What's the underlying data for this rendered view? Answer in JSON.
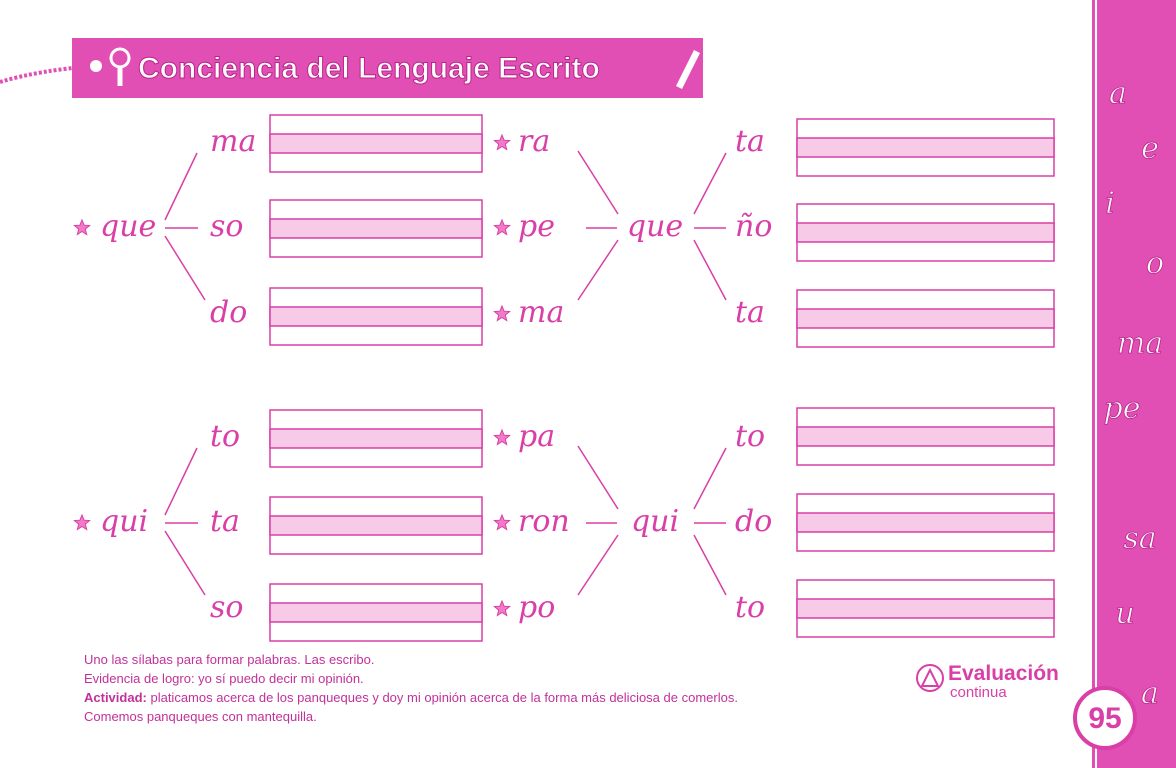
{
  "header": {
    "title": "Conciencia del Lenguaje Escrito"
  },
  "exercises": [
    {
      "root": "que",
      "endings": [
        "ma",
        "so",
        "do"
      ]
    },
    {
      "center": "que",
      "prefixes": [
        "ra",
        "pe",
        "ma"
      ],
      "endings": [
        "ta",
        "ño",
        "ta"
      ]
    },
    {
      "root": "qui",
      "endings": [
        "to",
        "ta",
        "so"
      ]
    },
    {
      "center": "qui",
      "prefixes": [
        "pa",
        "ron",
        "po"
      ],
      "endings": [
        "to",
        "do",
        "to"
      ]
    }
  ],
  "instructions": [
    "Uno las sílabas para formar palabras. Las escribo.",
    "Evidencia de logro: yo sí puedo decir mi opinión."
  ],
  "activity": {
    "label": "Actividad:",
    "text": "platicamos acerca de los panqueques y doy mi opinión acerca de la forma más deliciosa de comerlos."
  },
  "closing": "Comemos panqueques con mantequilla.",
  "badge": {
    "title": "Evaluación",
    "subtitle": "continua"
  },
  "sidebar": {
    "letters": [
      "a",
      "e",
      "i",
      "o",
      "ma",
      "pe",
      "sa",
      "u",
      "a"
    ],
    "page_number": "95"
  }
}
